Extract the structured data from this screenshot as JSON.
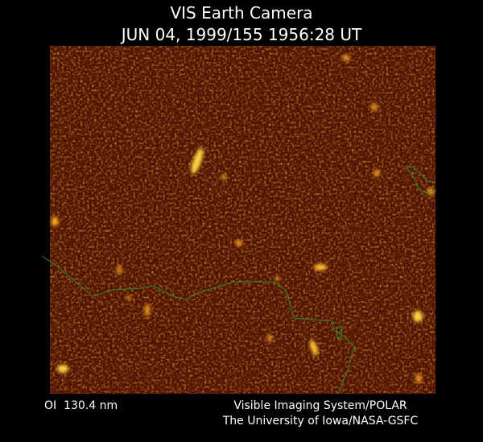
{
  "header": {
    "title": "VIS Earth Camera",
    "subtitle": "JUN 04, 1999/155 1956:28 UT"
  },
  "footer": {
    "left": "OI  130.4 nm",
    "right_line1": "Visible Imaging System/POLAR",
    "right_line2": "The University of Iowa/NASA-GSFC"
  }
}
